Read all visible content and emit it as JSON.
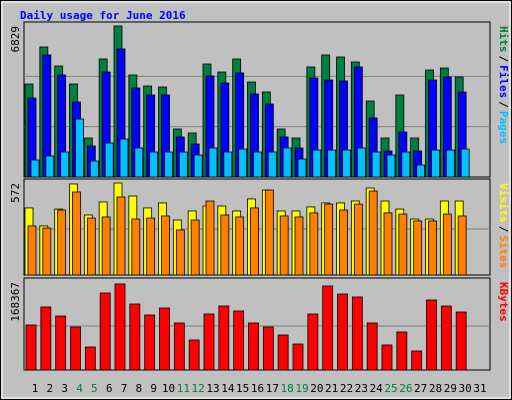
{
  "chart_data": {
    "type": "bar",
    "title": "Daily usage for June 2016",
    "separator": "/",
    "categories": [
      "1",
      "2",
      "3",
      "4",
      "5",
      "6",
      "7",
      "8",
      "9",
      "10",
      "11",
      "12",
      "13",
      "14",
      "15",
      "16",
      "17",
      "18",
      "19",
      "20",
      "21",
      "22",
      "23",
      "24",
      "25",
      "26",
      "27",
      "28",
      "29",
      "30",
      "31"
    ],
    "category_colors": [
      "#000000",
      "#000000",
      "#000000",
      "#008040",
      "#008040",
      "#000000",
      "#000000",
      "#000000",
      "#000000",
      "#000000",
      "#008040",
      "#008040",
      "#000000",
      "#000000",
      "#000000",
      "#000000",
      "#000000",
      "#008040",
      "#008040",
      "#000000",
      "#000000",
      "#000000",
      "#000000",
      "#000000",
      "#008040",
      "#008040",
      "#000000",
      "#000000",
      "#000000",
      "#000000",
      "#000000"
    ],
    "panels": [
      {
        "ylim": [
          0,
          6829
        ],
        "yticks": [
          6829
        ],
        "grid_divisions": 3,
        "series": [
          {
            "name": "Hits",
            "color": "#008040",
            "values": [
              4206,
              5879,
              5020,
              4206,
              1764,
              5337,
              6829,
              4613,
              4116,
              4070,
              2171,
              1990,
              5110,
              4749,
              5337,
              4296,
              3844,
              2171,
              1764,
              4975,
              5518,
              5427,
              5201,
              3437,
              1764,
              3708,
              1764,
              4839,
              4930,
              4523,
              null
            ]
          },
          {
            "name": "Files",
            "color": "#0000ff",
            "values": [
              3573,
              5518,
              4613,
              3392,
              1402,
              4749,
              5789,
              4025,
              3708,
              3708,
              1809,
              1492,
              4568,
              4251,
              4704,
              3754,
              3301,
              1809,
              1312,
              4477,
              4387,
              4342,
              4975,
              2668,
              1176,
              2035,
              1176,
              4387,
              4523,
              3844,
              null
            ]
          },
          {
            "name": "Pages",
            "color": "#00c0ff",
            "values": [
              769,
              950,
              1131,
              2623,
              724,
              1538,
              1719,
              1312,
              1131,
              1131,
              1131,
              995,
              1312,
              1131,
              1266,
              1131,
              1131,
              1312,
              814,
              1221,
              1221,
              1221,
              1312,
              1131,
              995,
              1131,
              543,
              1221,
              1221,
              1266,
              null
            ]
          }
        ]
      },
      {
        "ylim": [
          0,
          572
        ],
        "yticks": [
          572
        ],
        "grid_divisions": 2,
        "series": [
          {
            "name": "Visits",
            "color": "#ffff00",
            "values": [
              417,
              305,
              410,
              566,
              373,
              454,
              572,
              491,
              417,
              448,
              342,
              398,
              429,
              429,
              398,
              473,
              528,
              398,
              398,
              423,
              448,
              448,
              460,
              541,
              460,
              410,
              348,
              348,
              460,
              460,
              null
            ]
          },
          {
            "name": "Sites",
            "color": "#ff8000",
            "values": [
              305,
              292,
              404,
              516,
              354,
              361,
              485,
              348,
              354,
              367,
              280,
              342,
              460,
              373,
              361,
              417,
              528,
              367,
              361,
              386,
              441,
              404,
              441,
              522,
              386,
              379,
              336,
              336,
              379,
              367,
              null
            ]
          }
        ]
      },
      {
        "ylim": [
          0,
          168367
        ],
        "yticks": [
          168367
        ],
        "grid_divisions": 2,
        "series": [
          {
            "name": "KBytes",
            "color": "#ff0000",
            "values": [
              86097,
              120536,
              103317,
              82271,
              44005,
              147321,
              164541,
              126276,
              105230,
              118623,
              89924,
              57398,
              107143,
              122449,
              112883,
              89924,
              82271,
              66964,
              49745,
              107143,
              160714,
              145408,
              139668,
              89924,
              47832,
              72704,
              36352,
              133929,
              122449,
              110969,
              null
            ]
          }
        ]
      }
    ]
  }
}
